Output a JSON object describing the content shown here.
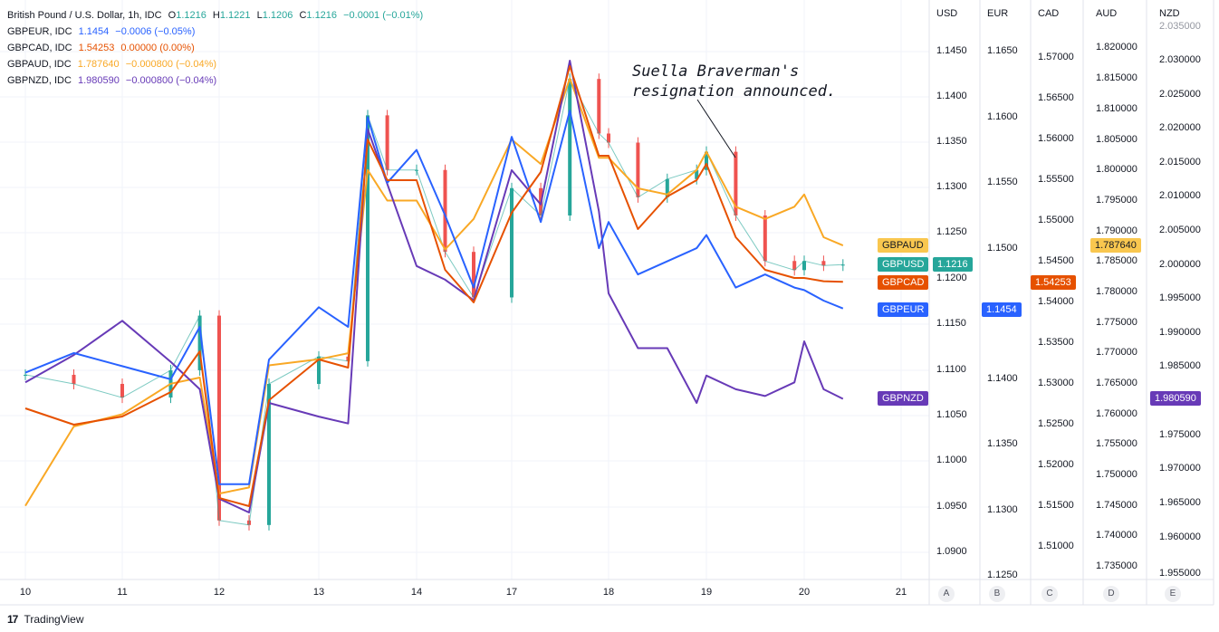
{
  "legend": {
    "main": {
      "name": "British Pound / U.S. Dollar, 1h, IDC",
      "o_label": "O",
      "o": "1.1216",
      "h_label": "H",
      "h": "1.1221",
      "l_label": "L",
      "l": "1.1206",
      "c_label": "C",
      "c": "1.1216",
      "chg": "−0.0001 (−0.01%)"
    },
    "items": [
      {
        "name": "GBPEUR, IDC",
        "value": "1.1454",
        "chg": "−0.0006 (−0.05%)",
        "color": "#2962ff"
      },
      {
        "name": "GBPCAD, IDC",
        "value": "1.54253",
        "chg": "0.00000 (0.00%)",
        "color": "#e65100"
      },
      {
        "name": "GBPAUD, IDC",
        "value": "1.787640",
        "chg": "−0.000800 (−0.04%)",
        "color": "#f9a825"
      },
      {
        "name": "GBPNZD, IDC",
        "value": "1.980590",
        "chg": "−0.000800 (−0.04%)",
        "color": "#673ab7"
      }
    ]
  },
  "annotation": "Suella Braverman's\nresignation announced.",
  "axes": [
    {
      "label": "USD",
      "letter": "A",
      "ticks": [
        "1.1450",
        "1.1400",
        "1.1350",
        "1.1300",
        "1.1250",
        "1.1200",
        "1.1150",
        "1.1100",
        "1.1050",
        "1.1000",
        "1.0950",
        "1.0900"
      ]
    },
    {
      "label": "EUR",
      "letter": "B",
      "ticks": [
        "1.1650",
        "1.1600",
        "1.1550",
        "1.1500",
        "1.1450",
        "1.1400",
        "1.1350",
        "1.1300",
        "1.1250"
      ]
    },
    {
      "label": "CAD",
      "letter": "C",
      "ticks": [
        "1.57000",
        "1.56500",
        "1.56000",
        "1.55500",
        "1.55000",
        "1.54500",
        "1.54000",
        "1.53500",
        "1.53000",
        "1.52500",
        "1.52000",
        "1.51500",
        "1.51000"
      ]
    },
    {
      "label": "AUD",
      "letter": "D",
      "ticks": [
        "1.820000",
        "1.815000",
        "1.810000",
        "1.805000",
        "1.800000",
        "1.795000",
        "1.790000",
        "1.785000",
        "1.780000",
        "1.775000",
        "1.770000",
        "1.765000",
        "1.760000",
        "1.755000",
        "1.750000",
        "1.745000",
        "1.740000",
        "1.735000"
      ]
    },
    {
      "label": "NZD",
      "letter": "E",
      "ticks": [
        "2.035000",
        "2.030000",
        "2.025000",
        "2.020000",
        "2.015000",
        "2.010000",
        "2.005000",
        "2.000000",
        "1.995000",
        "1.990000",
        "1.985000",
        "1.980000",
        "1.975000",
        "1.970000",
        "1.965000",
        "1.960000",
        "1.955000"
      ]
    }
  ],
  "badges": {
    "left": [
      {
        "text": "GBPAUD",
        "bg": "#f9c74f",
        "fg": "#131722"
      },
      {
        "text": "GBPUSD",
        "bg": "#26a69a",
        "fg": "#ffffff"
      },
      {
        "text": "GBPCAD",
        "bg": "#e65100",
        "fg": "#ffffff"
      },
      {
        "text": "GBPEUR",
        "bg": "#2962ff",
        "fg": "#ffffff"
      },
      {
        "text": "GBPNZD",
        "bg": "#673ab7",
        "fg": "#ffffff"
      }
    ],
    "usd_value": "1.1216",
    "eur_value": "1.1454",
    "cad_value": "1.54253",
    "aud_value": "1.787640",
    "nzd_value": "1.980590"
  },
  "x_ticks": [
    "10",
    "11",
    "12",
    "13",
    "14",
    "17",
    "18",
    "19",
    "20",
    "21"
  ],
  "footer": {
    "logo": "17",
    "brand": "TradingView"
  },
  "chart_data": {
    "type": "line",
    "title": "British Pound / U.S. Dollar, 1h, IDC",
    "x": [
      10,
      10.5,
      11,
      11.5,
      11.8,
      12,
      12.3,
      12.5,
      13,
      13.3,
      13.5,
      13.7,
      14,
      14.3,
      14.6,
      17,
      17.3,
      17.6,
      17.9,
      18,
      18.3,
      18.6,
      18.9,
      19,
      19.3,
      19.6,
      19.9,
      20,
      20.2,
      20.4
    ],
    "x_labels": [
      "10",
      "11",
      "12",
      "13",
      "14",
      "17",
      "18",
      "19",
      "20",
      "21"
    ],
    "series": [
      {
        "name": "GBPUSD",
        "axis": "USD",
        "candles": true,
        "values": [
          1.1095,
          1.1085,
          1.107,
          1.11,
          1.116,
          1.0935,
          1.093,
          1.1085,
          1.1115,
          1.111,
          1.138,
          1.132,
          1.132,
          1.123,
          1.118,
          1.13,
          1.127,
          1.142,
          1.136,
          1.135,
          1.129,
          1.131,
          1.132,
          1.134,
          1.127,
          1.122,
          1.121,
          1.122,
          1.1215,
          1.1216
        ]
      },
      {
        "name": "GBPEUR",
        "axis": "EUR",
        "values": [
          1.1405,
          1.142,
          1.141,
          1.14,
          1.144,
          1.132,
          1.132,
          1.1415,
          1.1455,
          1.144,
          1.16,
          1.155,
          1.1575,
          1.1525,
          1.147,
          1.1585,
          1.152,
          1.1605,
          1.15,
          1.152,
          1.148,
          1.149,
          1.15,
          1.151,
          1.147,
          1.148,
          1.147,
          1.1468,
          1.146,
          1.1454
        ]
      },
      {
        "name": "GBPCAD",
        "axis": "CAD",
        "values": [
          1.527,
          1.525,
          1.526,
          1.529,
          1.534,
          1.516,
          1.515,
          1.528,
          1.533,
          1.532,
          1.56,
          1.555,
          1.555,
          1.544,
          1.54,
          1.551,
          1.556,
          1.569,
          1.558,
          1.558,
          1.549,
          1.553,
          1.555,
          1.557,
          1.548,
          1.544,
          1.543,
          1.543,
          1.5426,
          1.54253
        ]
      },
      {
        "name": "GBPAUD",
        "axis": "AUD",
        "values": [
          1.745,
          1.758,
          1.76,
          1.765,
          1.766,
          1.747,
          1.748,
          1.768,
          1.769,
          1.77,
          1.8,
          1.795,
          1.795,
          1.787,
          1.792,
          1.805,
          1.801,
          1.815,
          1.802,
          1.802,
          1.797,
          1.796,
          1.8,
          1.803,
          1.794,
          1.792,
          1.794,
          1.796,
          1.789,
          1.78764
        ]
      },
      {
        "name": "GBPNZD",
        "axis": "NZD",
        "values": [
          1.983,
          1.987,
          1.992,
          1.986,
          1.982,
          1.966,
          1.964,
          1.98,
          1.978,
          1.977,
          2.02,
          2.012,
          2.0,
          1.998,
          1.995,
          2.014,
          2.009,
          2.03,
          2.008,
          1.996,
          1.988,
          1.988,
          1.98,
          1.984,
          1.982,
          1.981,
          1.983,
          1.989,
          1.982,
          1.98059
        ]
      }
    ],
    "grid": true,
    "legend_position": "top-left"
  }
}
